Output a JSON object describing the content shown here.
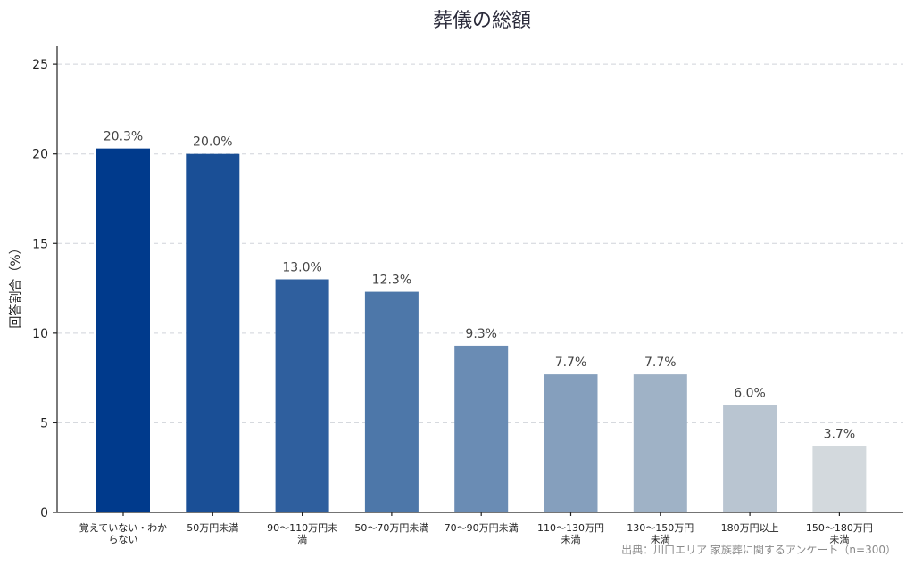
{
  "chart_data": {
    "type": "bar",
    "title": "葬儀の総額",
    "ylabel": "回答割合（%）",
    "xlabel": "",
    "ylim": [
      0,
      26
    ],
    "yticks": [
      0,
      5,
      10,
      15,
      20,
      25
    ],
    "grid": true,
    "categories": [
      [
        "覚えていない・わか",
        "らない"
      ],
      [
        "50万円未満"
      ],
      [
        "90〜110万円未",
        "満"
      ],
      [
        "50〜70万円未満"
      ],
      [
        "70〜90万円未満"
      ],
      [
        "110〜130万円",
        "未満"
      ],
      [
        "130〜150万円",
        "未満"
      ],
      [
        "180万円以上"
      ],
      [
        "150〜180万円",
        "未満"
      ]
    ],
    "values": [
      20.3,
      20.0,
      13.0,
      12.3,
      9.3,
      7.7,
      7.7,
      6.0,
      3.7
    ],
    "value_labels": [
      "20.3%",
      "20.0%",
      "13.0%",
      "12.3%",
      "9.3%",
      "7.7%",
      "7.7%",
      "6.0%",
      "3.7%"
    ],
    "colors": [
      "#003a8c",
      "#1a4f96",
      "#2f5f9e",
      "#4d77a9",
      "#6a8cb4",
      "#859fbd",
      "#9fb2c6",
      "#b9c5d1",
      "#d3d9dd"
    ],
    "source": "出典：川口エリア 家族葬に関するアンケート（n=300）"
  }
}
